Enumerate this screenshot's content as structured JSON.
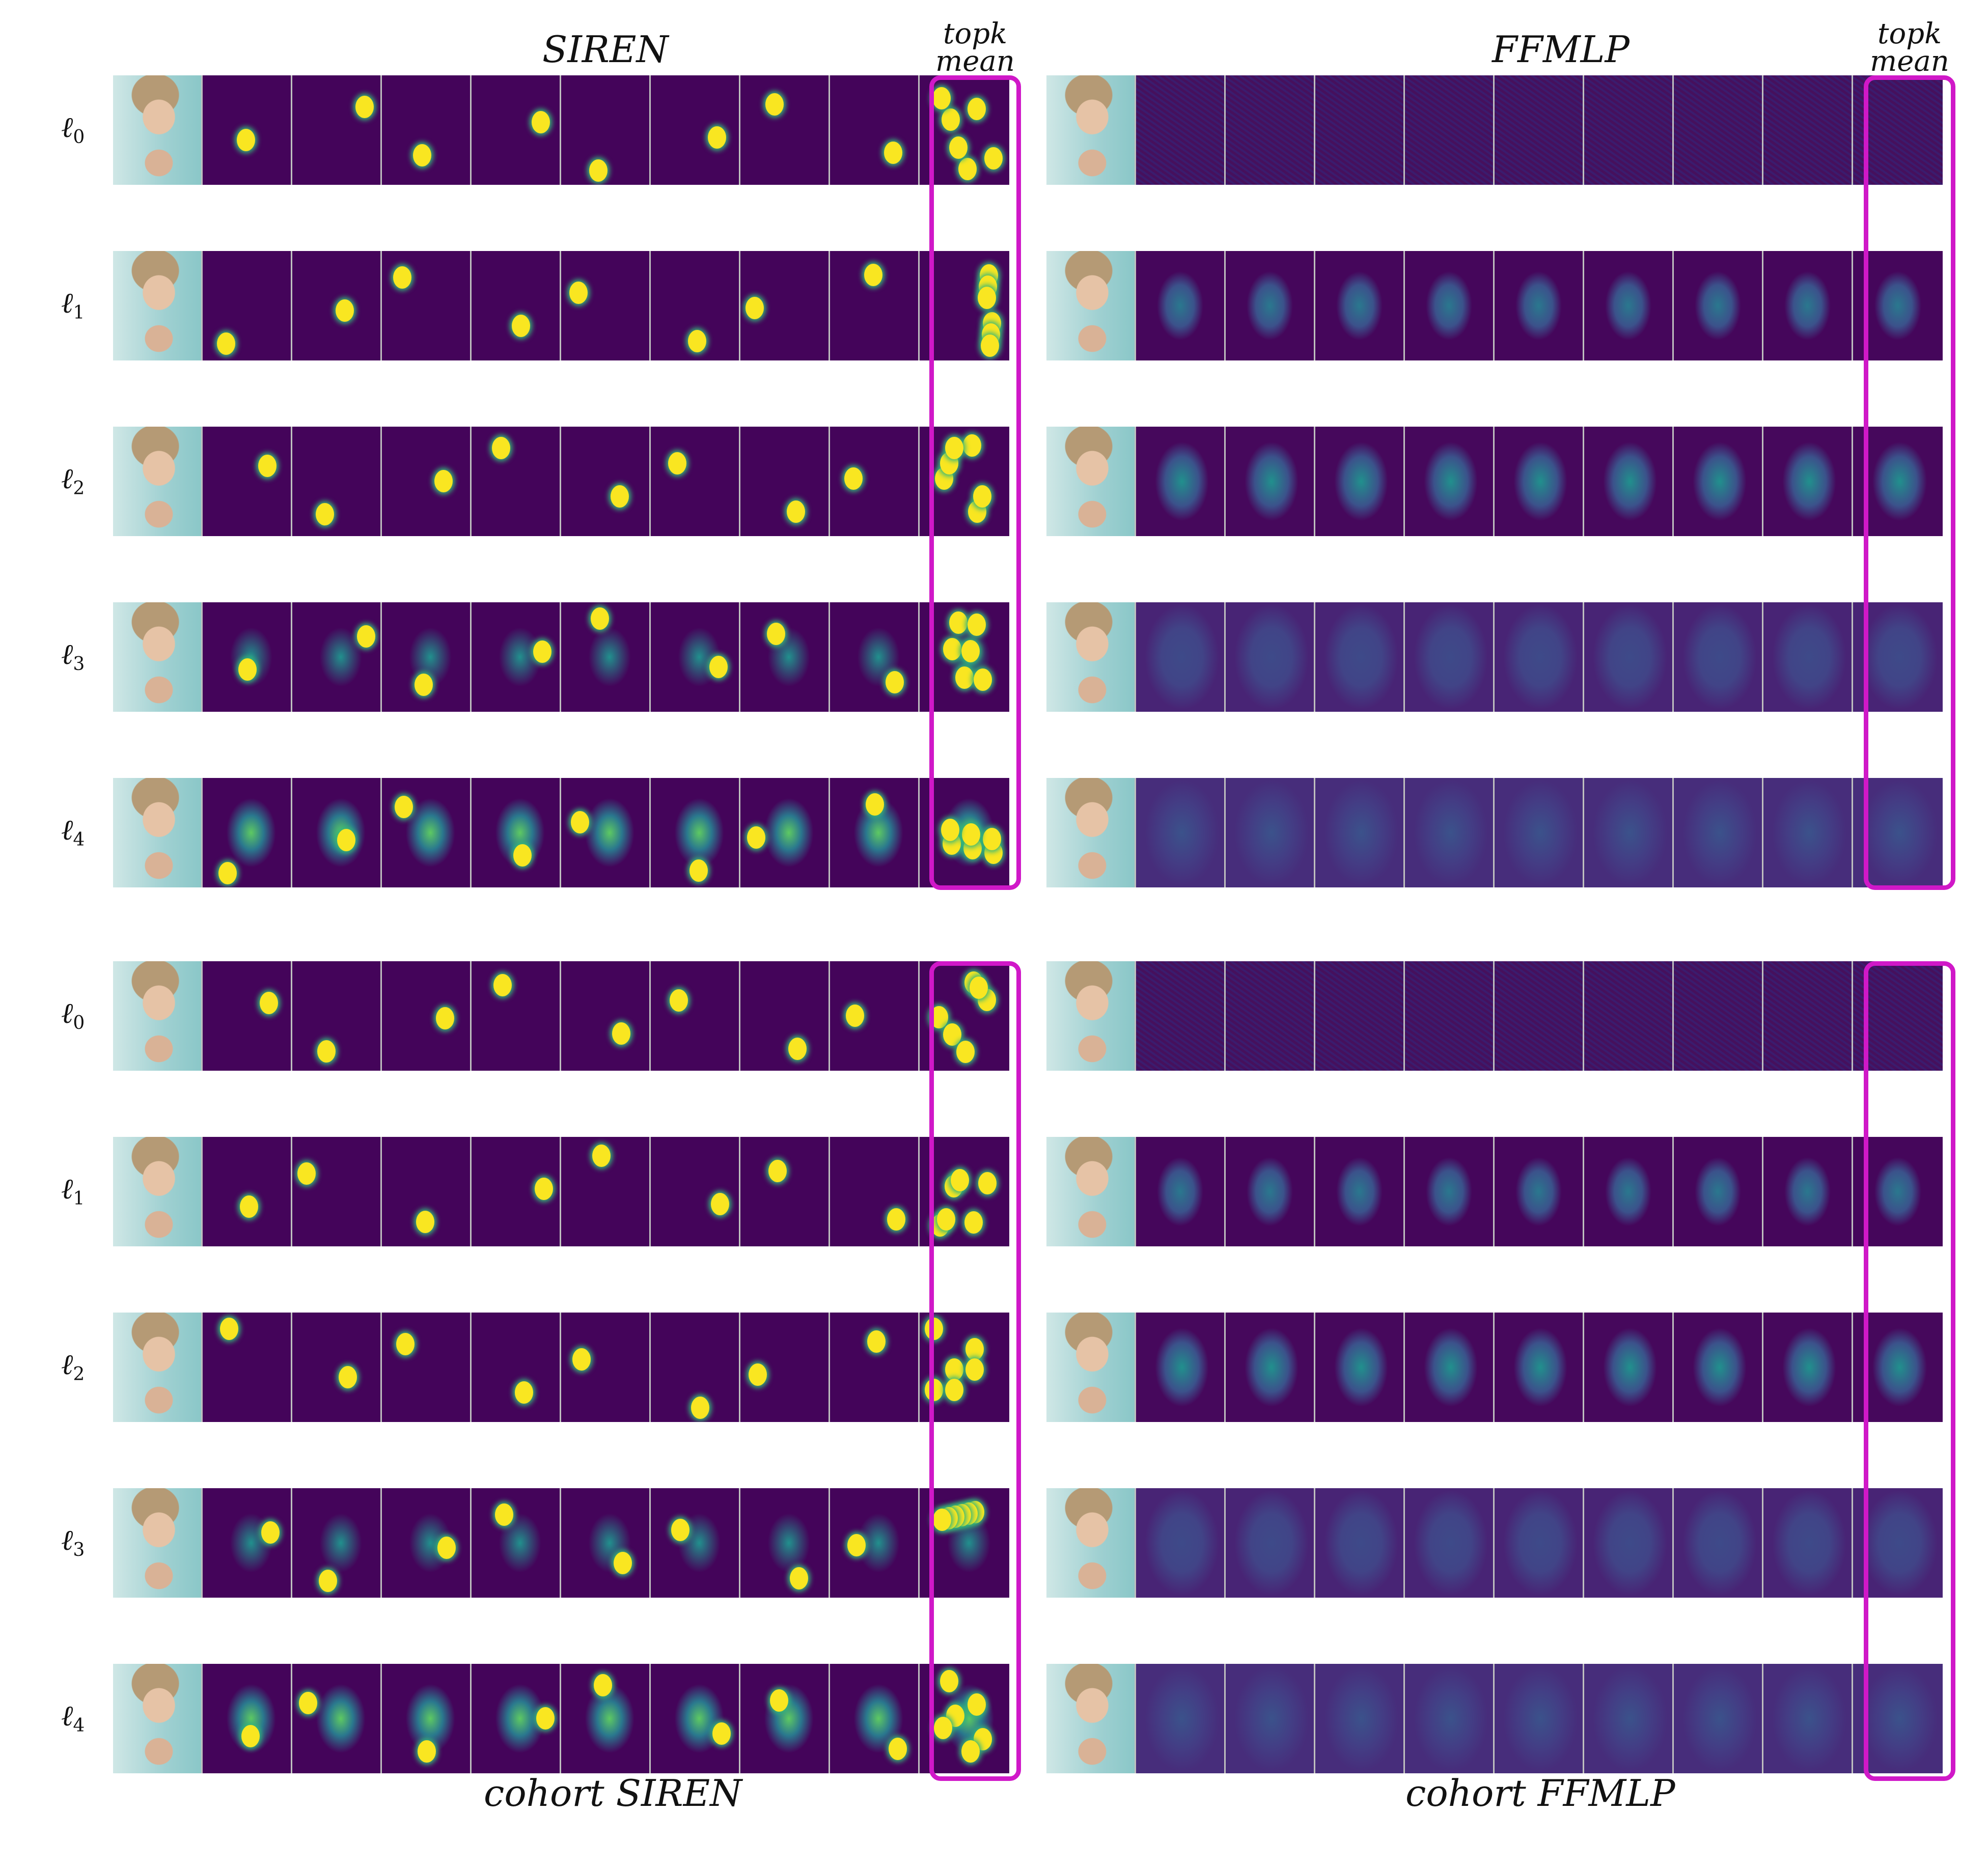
{
  "titles": {
    "top_left": "SIREN",
    "top_right": "FFMLP",
    "topk_left_1": "topk",
    "topk_left_2": "mean",
    "topk_right_1": "topk",
    "topk_right_2": "mean",
    "bottom_left": "cohort SIREN",
    "bottom_right": "cohort FFMLP"
  },
  "row_labels": {
    "l0": "ℓ",
    "sub0": "0",
    "sub1": "1",
    "sub2": "2",
    "sub3": "3",
    "sub4": "4"
  },
  "colors": {
    "highlight": "#d018c8",
    "viridis_low": "#44045a",
    "viridis_high": "#f9e621"
  }
}
